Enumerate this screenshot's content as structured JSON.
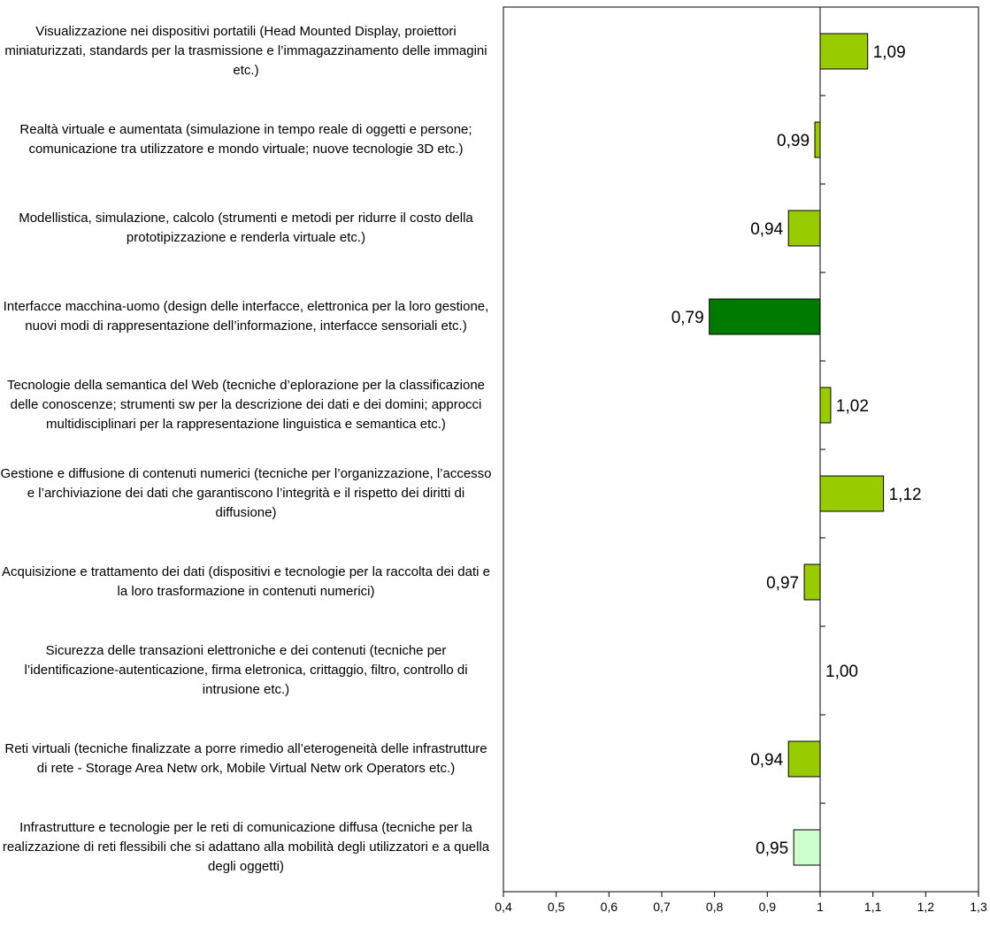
{
  "colors": {
    "bar_default": "#99cc00",
    "bar_dark": "#007a00",
    "bar_light": "#ccffcc",
    "axis": "#000000"
  },
  "chart_data": {
    "type": "bar",
    "orientation": "horizontal",
    "categories": [
      "Visualizzazione nei dispositivi portatili (Head Mounted Display, proiettori miniaturizzati, standards per la trasmissione e l’immagazzinamento delle immagini etc.)",
      "Realtà virtuale e aumentata (simulazione in tempo reale di oggetti e persone; comunicazione tra utilizzatore e mondo virtuale; nuove tecnologie 3D etc.)",
      "Modellistica, simulazione, calcolo (strumenti e metodi per ridurre il costo della prototipizzazione e renderla virtuale etc.)",
      "Interfacce macchina-uomo (design delle interfacce, elettronica per la loro gestione, nuovi modi di rappresentazione dell’informazione, interfacce sensoriali etc.)",
      "Tecnologie della semantica del Web (tecniche d’eplorazione per la classificazione delle conoscenze; strumenti sw  per la descrizione dei dati e dei domini; approcci multidisciplinari per la rappresentazione linguistica e semantica etc.)",
      "Gestione e diffusione di contenuti numerici (tecniche per l’organizzazione, l’accesso e l’archiviazione dei dati che garantiscono l’integrità e il rispetto dei diritti di diffusione)",
      "Acquisizione e trattamento dei dati (dispositivi e tecnologie per la raccolta dei dati e la loro trasformazione in contenuti numerici)",
      "Sicurezza delle transazioni elettroniche e dei contenuti (tecniche per l’identificazione-autenticazione, firma eletronica, crittaggio, filtro, controllo di intrusione etc.)",
      "Reti virtuali (tecniche finalizzate a porre rimedio all’eterogeneità delle infrastrutture di rete - Storage Area Netw ork, Mobile Virtual Netw ork Operators etc.)",
      "Infrastrutture e tecnologie per le reti di comunicazione diffusa (tecniche per la realizzazione di reti flessibili che si adattano alla mobilità degli utilizzatori e a quella degli oggetti)"
    ],
    "values": [
      1.09,
      0.99,
      0.94,
      0.79,
      1.02,
      1.12,
      0.97,
      1.0,
      0.94,
      0.95
    ],
    "value_labels": [
      "1,09",
      "0,99",
      "0,94",
      "0,79",
      "1,02",
      "1,12",
      "0,97",
      "1,00",
      "0,94",
      "0,95"
    ],
    "bar_colors": [
      "bar_default",
      "bar_default",
      "bar_default",
      "bar_dark",
      "bar_default",
      "bar_default",
      "bar_default",
      "bar_default",
      "bar_default",
      "bar_light"
    ],
    "baseline": 1,
    "xlim": [
      0.4,
      1.3
    ],
    "xticks": [
      0.4,
      0.5,
      0.6,
      0.7,
      0.8,
      0.9,
      1,
      1.1,
      1.2,
      1.3
    ],
    "xtick_labels": [
      "0,4",
      "0,5",
      "0,6",
      "0,7",
      "0,8",
      "0,9",
      "1",
      "1,1",
      "1,2",
      "1,3"
    ],
    "title": "",
    "xlabel": "",
    "ylabel": "",
    "grid": false,
    "legend": "none"
  }
}
